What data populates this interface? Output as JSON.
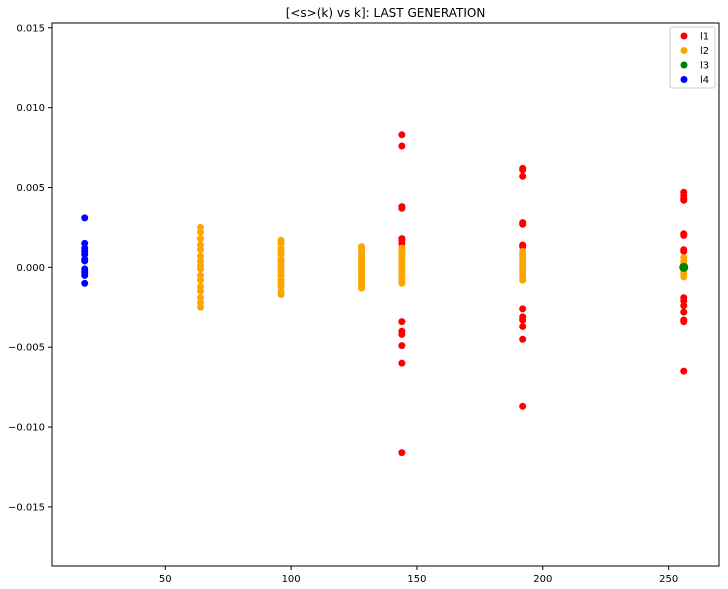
{
  "chart_data": {
    "type": "scatter",
    "title": "[<s>(k) vs k]: LAST GENERATION",
    "xlabel": "",
    "ylabel": "",
    "xlim": [
      5,
      270
    ],
    "ylim": [
      -0.0187,
      0.0153
    ],
    "x_ticks": [
      50,
      100,
      150,
      200,
      250
    ],
    "x_tick_labels": [
      "50",
      "100",
      "150",
      "200",
      "250"
    ],
    "y_ticks": [
      -0.015,
      -0.01,
      -0.005,
      0.0,
      0.005,
      0.01,
      0.015
    ],
    "y_tick_labels": [
      "−0.015",
      "−0.010",
      "−0.005",
      "0.000",
      "0.005",
      "0.010",
      "0.015"
    ],
    "grid": false,
    "legend_position": "top-right",
    "series": [
      {
        "name": "l1",
        "color": "#ff0000",
        "points": [
          [
            144,
            0.0083
          ],
          [
            144,
            0.0076
          ],
          [
            144,
            0.0038
          ],
          [
            144,
            0.0037
          ],
          [
            144,
            0.0018
          ],
          [
            144,
            0.0017
          ],
          [
            144,
            0.0015
          ],
          [
            144,
            0.0012
          ],
          [
            144,
            -0.0034
          ],
          [
            144,
            -0.004
          ],
          [
            144,
            -0.0042
          ],
          [
            144,
            -0.0049
          ],
          [
            144,
            -0.006
          ],
          [
            144,
            -0.0116
          ],
          [
            192,
            0.0062
          ],
          [
            192,
            0.0061
          ],
          [
            192,
            0.0057
          ],
          [
            192,
            0.0028
          ],
          [
            192,
            0.0027
          ],
          [
            192,
            0.0014
          ],
          [
            192,
            0.0013
          ],
          [
            192,
            -0.0026
          ],
          [
            192,
            -0.0031
          ],
          [
            192,
            -0.0033
          ],
          [
            192,
            -0.0037
          ],
          [
            192,
            -0.0045
          ],
          [
            192,
            -0.0087
          ],
          [
            256,
            0.0047
          ],
          [
            256,
            0.0045
          ],
          [
            256,
            0.0043
          ],
          [
            256,
            0.0042
          ],
          [
            256,
            0.0021
          ],
          [
            256,
            0.002
          ],
          [
            256,
            0.0011
          ],
          [
            256,
            0.001
          ],
          [
            256,
            -0.0019
          ],
          [
            256,
            -0.0021
          ],
          [
            256,
            -0.0024
          ],
          [
            256,
            -0.0028
          ],
          [
            256,
            -0.0033
          ],
          [
            256,
            -0.0034
          ],
          [
            256,
            -0.0065
          ]
        ]
      },
      {
        "name": "l2",
        "color": "#ffa500",
        "points": [
          [
            64,
            0.0025
          ],
          [
            64,
            0.0022
          ],
          [
            64,
            0.0018
          ],
          [
            64,
            0.0014
          ],
          [
            64,
            0.0011
          ],
          [
            64,
            0.0007
          ],
          [
            64,
            0.0004
          ],
          [
            64,
            0.0001
          ],
          [
            64,
            -0.0001
          ],
          [
            64,
            -0.0005
          ],
          [
            64,
            -0.0008
          ],
          [
            64,
            -0.0012
          ],
          [
            64,
            -0.0015
          ],
          [
            64,
            -0.0019
          ],
          [
            64,
            -0.0022
          ],
          [
            64,
            -0.0025
          ],
          [
            96,
            0.0017
          ],
          [
            96,
            0.0015
          ],
          [
            96,
            0.0012
          ],
          [
            96,
            0.001
          ],
          [
            96,
            0.0008
          ],
          [
            96,
            0.0005
          ],
          [
            96,
            0.0003
          ],
          [
            96,
            0.0001
          ],
          [
            96,
            -0.0001
          ],
          [
            96,
            -0.0003
          ],
          [
            96,
            -0.0005
          ],
          [
            96,
            -0.0008
          ],
          [
            96,
            -0.001
          ],
          [
            96,
            -0.0012
          ],
          [
            96,
            -0.0015
          ],
          [
            96,
            -0.0017
          ],
          [
            128,
            0.0013
          ],
          [
            128,
            0.0012
          ],
          [
            128,
            0.001
          ],
          [
            128,
            0.0009
          ],
          [
            128,
            0.0007
          ],
          [
            128,
            0.0006
          ],
          [
            128,
            0.0004
          ],
          [
            128,
            0.0003
          ],
          [
            128,
            0.0001
          ],
          [
            128,
            0.0
          ],
          [
            128,
            -0.0001
          ],
          [
            128,
            -0.0003
          ],
          [
            128,
            -0.0004
          ],
          [
            128,
            -0.0006
          ],
          [
            128,
            -0.0007
          ],
          [
            128,
            -0.0009
          ],
          [
            128,
            -0.001
          ],
          [
            128,
            -0.0012
          ],
          [
            128,
            -0.0013
          ],
          [
            144,
            0.0012
          ],
          [
            144,
            0.001
          ],
          [
            144,
            0.0008
          ],
          [
            144,
            0.0006
          ],
          [
            144,
            0.0004
          ],
          [
            144,
            0.0002
          ],
          [
            144,
            0.0
          ],
          [
            144,
            -0.0002
          ],
          [
            144,
            -0.0004
          ],
          [
            144,
            -0.0006
          ],
          [
            144,
            -0.0008
          ],
          [
            144,
            -0.001
          ],
          [
            192,
            0.001
          ],
          [
            192,
            0.0008
          ],
          [
            192,
            0.0006
          ],
          [
            192,
            0.0004
          ],
          [
            192,
            0.0002
          ],
          [
            192,
            0.0
          ],
          [
            192,
            -0.0002
          ],
          [
            192,
            -0.0004
          ],
          [
            192,
            -0.0006
          ],
          [
            192,
            -0.0008
          ],
          [
            256,
            0.0006
          ],
          [
            256,
            0.0004
          ],
          [
            256,
            0.0002
          ],
          [
            256,
            0.0
          ],
          [
            256,
            -0.0002
          ],
          [
            256,
            -0.0004
          ],
          [
            256,
            -0.0006
          ]
        ]
      },
      {
        "name": "l3",
        "color": "#008000",
        "points": [
          [
            256,
            0.0
          ]
        ]
      },
      {
        "name": "l4",
        "color": "#0000ff",
        "points": [
          [
            18,
            0.0031
          ],
          [
            18,
            0.0015
          ],
          [
            18,
            0.0012
          ],
          [
            18,
            0.001
          ],
          [
            18,
            0.0008
          ],
          [
            18,
            0.0005
          ],
          [
            18,
            0.0004
          ],
          [
            18,
            -0.0001
          ],
          [
            18,
            -0.0003
          ],
          [
            18,
            -0.0005
          ],
          [
            18,
            -0.001
          ]
        ]
      }
    ]
  }
}
